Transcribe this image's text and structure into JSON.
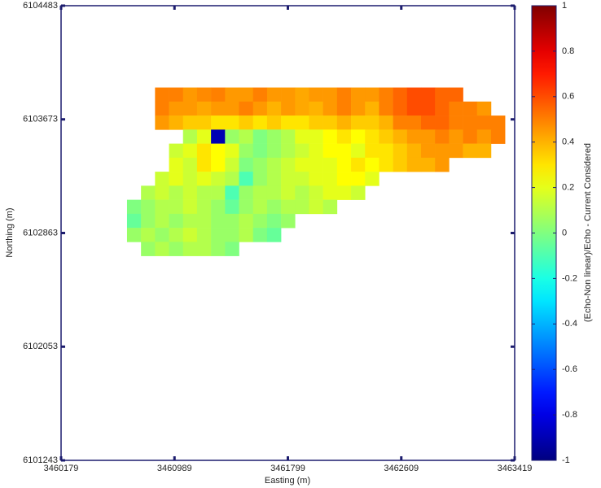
{
  "chart_data": {
    "type": "heatmap",
    "xlabel": "Easting (m)",
    "ylabel": "Northing (m)",
    "colorbar_label": "(Echo-Non linear)/Echo - Current Considered",
    "colormap": "jet",
    "xlim": [
      3460179,
      3463419
    ],
    "xticks": [
      3460179,
      3460989,
      3461799,
      3462609,
      3463419
    ],
    "ylim": [
      6101243,
      6104483
    ],
    "yticks": [
      6101243,
      6102053,
      6102863,
      6103673,
      6104483
    ],
    "clim": [
      -1,
      1
    ],
    "cticks": [
      -1,
      -0.8,
      -0.6,
      -0.4,
      -0.2,
      0,
      0.2,
      0.4,
      0.6,
      0.8,
      1
    ],
    "x": [
      3460700,
      3460800,
      3460900,
      3461000,
      3461100,
      3461200,
      3461300,
      3461400,
      3461500,
      3461600,
      3461700,
      3461800,
      3461900,
      3462000,
      3462100,
      3462200,
      3462300,
      3462400,
      3462500,
      3462600,
      3462700,
      3462800,
      3462900,
      3463000,
      3463100,
      3463200,
      3463300
    ],
    "y": [
      6103850,
      6103750,
      6103650,
      6103550,
      6103450,
      6103350,
      6103250,
      6103150,
      6103050,
      6102950,
      6102850,
      6102750
    ],
    "values": [
      [
        null,
        null,
        0.5,
        0.5,
        0.45,
        0.48,
        0.5,
        0.45,
        0.45,
        0.5,
        0.45,
        0.45,
        0.42,
        0.45,
        0.45,
        0.5,
        0.45,
        0.45,
        0.5,
        0.55,
        0.6,
        0.6,
        0.55,
        0.55,
        null,
        null,
        null
      ],
      [
        null,
        null,
        0.5,
        0.45,
        0.45,
        0.42,
        0.45,
        0.45,
        0.5,
        0.45,
        0.4,
        0.45,
        0.42,
        0.4,
        0.45,
        0.5,
        0.45,
        0.4,
        0.5,
        0.55,
        0.6,
        0.6,
        0.55,
        0.5,
        0.5,
        0.45,
        null
      ],
      [
        null,
        null,
        0.45,
        0.4,
        0.35,
        0.35,
        0.3,
        0.3,
        0.35,
        0.3,
        0.35,
        0.3,
        0.3,
        0.35,
        0.35,
        0.4,
        0.35,
        0.35,
        0.4,
        0.5,
        0.5,
        0.55,
        0.55,
        0.5,
        0.5,
        0.5,
        0.5
      ],
      [
        null,
        null,
        null,
        null,
        0.1,
        0.2,
        -0.9,
        0.05,
        0.1,
        0.0,
        0.05,
        0.1,
        0.2,
        0.2,
        0.25,
        0.3,
        0.25,
        0.3,
        0.35,
        0.4,
        0.45,
        0.45,
        0.5,
        0.45,
        0.5,
        0.45,
        0.5
      ],
      [
        null,
        null,
        null,
        0.15,
        0.2,
        0.3,
        0.25,
        0.2,
        0.05,
        0.0,
        0.05,
        0.1,
        0.15,
        0.2,
        0.25,
        0.25,
        0.2,
        0.3,
        0.3,
        0.35,
        0.4,
        0.45,
        0.45,
        0.45,
        0.4,
        0.4,
        null
      ],
      [
        null,
        null,
        null,
        0.2,
        0.15,
        0.3,
        0.25,
        0.15,
        0.0,
        0.05,
        0.1,
        0.15,
        0.2,
        0.2,
        0.2,
        0.25,
        0.3,
        0.25,
        0.3,
        0.35,
        0.4,
        0.4,
        0.45,
        null,
        null,
        null,
        null
      ],
      [
        null,
        null,
        0.15,
        0.2,
        0.15,
        0.2,
        0.15,
        0.1,
        -0.1,
        0.05,
        0.1,
        0.15,
        0.15,
        0.2,
        0.2,
        0.25,
        0.25,
        0.2,
        null,
        null,
        null,
        null,
        null,
        null,
        null,
        null,
        null
      ],
      [
        null,
        0.1,
        0.15,
        0.1,
        0.15,
        0.1,
        0.1,
        -0.1,
        0.05,
        0.1,
        0.1,
        0.15,
        0.1,
        0.15,
        0.2,
        0.2,
        0.15,
        null,
        null,
        null,
        null,
        null,
        null,
        null,
        null,
        null,
        null
      ],
      [
        0.0,
        0.05,
        0.1,
        0.1,
        0.15,
        0.1,
        0.05,
        -0.05,
        0.05,
        0.1,
        0.05,
        0.1,
        0.1,
        0.15,
        0.1,
        null,
        null,
        null,
        null,
        null,
        null,
        null,
        null,
        null,
        null,
        null,
        null
      ],
      [
        -0.05,
        0.05,
        0.1,
        0.05,
        0.1,
        0.1,
        0.05,
        0.05,
        0.1,
        0.05,
        0.0,
        0.05,
        null,
        null,
        null,
        null,
        null,
        null,
        null,
        null,
        null,
        null,
        null,
        null,
        null,
        null,
        null
      ],
      [
        0.05,
        0.1,
        0.05,
        0.1,
        0.15,
        0.1,
        0.05,
        0.05,
        0.1,
        0.0,
        -0.05,
        null,
        null,
        null,
        null,
        null,
        null,
        null,
        null,
        null,
        null,
        null,
        null,
        null,
        null,
        null,
        null
      ],
      [
        null,
        0.05,
        0.1,
        0.05,
        0.1,
        0.1,
        0.05,
        0.0,
        null,
        null,
        null,
        null,
        null,
        null,
        null,
        null,
        null,
        null,
        null,
        null,
        null,
        null,
        null,
        null,
        null,
        null,
        null
      ]
    ]
  }
}
